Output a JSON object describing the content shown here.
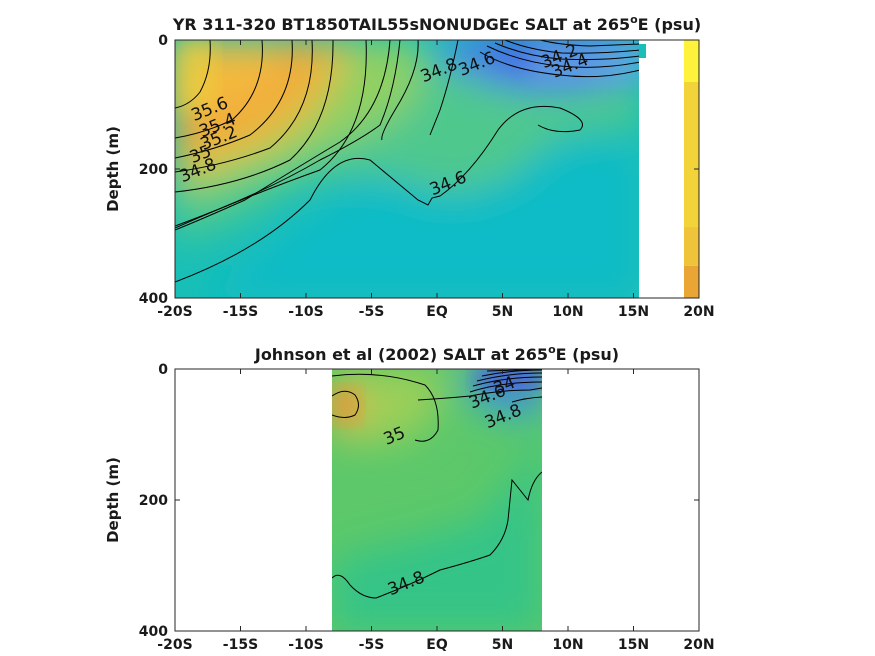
{
  "chart_data": [
    {
      "type": "contour",
      "title": "YR 311-320 BT1850TAIL55sNONUDGEc SALT at 265",
      "title_sup": "o",
      "title_suffix": "E (psu)",
      "xlabel": "",
      "ylabel": "Depth (m)",
      "xlim": [
        -20,
        20
      ],
      "ylim": [
        400,
        0
      ],
      "y_reversed": true,
      "x_ticks": [
        {
          "value": -20,
          "label": "-20S"
        },
        {
          "value": -15,
          "label": "-15S"
        },
        {
          "value": -10,
          "label": "-10S"
        },
        {
          "value": -5,
          "label": "-5S"
        },
        {
          "value": 0,
          "label": "EQ"
        },
        {
          "value": 5,
          "label": "5N"
        },
        {
          "value": 10,
          "label": "10N"
        },
        {
          "value": 15,
          "label": "15N"
        },
        {
          "value": 20,
          "label": "20N"
        }
      ],
      "y_ticks": [
        {
          "value": 0,
          "label": "0"
        },
        {
          "value": 200,
          "label": "200"
        },
        {
          "value": 400,
          "label": "400"
        }
      ],
      "data_extent": {
        "lat": [
          -20,
          15.5
        ],
        "depth": [
          0,
          395
        ]
      },
      "colorscale": {
        "low": "#3b40f2",
        "mid": "#16bfb8",
        "high": "#f5d236"
      },
      "contour_labels": [
        {
          "text": "35.6",
          "lat": -17.2,
          "depth": 115
        },
        {
          "text": "35.4",
          "lat": -16.6,
          "depth": 140
        },
        {
          "text": "35.2",
          "lat": -16.5,
          "depth": 160
        },
        {
          "text": "35",
          "lat": -17.9,
          "depth": 185
        },
        {
          "text": "34.8",
          "lat": -18.1,
          "depth": 210
        },
        {
          "text": "34.8",
          "lat": 0.3,
          "depth": 55
        },
        {
          "text": "34.6",
          "lat": 3.2,
          "depth": 45
        },
        {
          "text": "34.2",
          "lat": 9.5,
          "depth": 33
        },
        {
          "text": "34.4",
          "lat": 10.3,
          "depth": 48
        },
        {
          "text": "34.6",
          "lat": 1.0,
          "depth": 230
        }
      ]
    },
    {
      "type": "contour",
      "title": "Johnson et al (2002) SALT at 265",
      "title_sup": "o",
      "title_suffix": "E (psu)",
      "xlabel": "",
      "ylabel": "Depth (m)",
      "xlim": [
        -20,
        20
      ],
      "ylim": [
        400,
        0
      ],
      "y_reversed": true,
      "x_ticks": [
        {
          "value": -20,
          "label": "-20S"
        },
        {
          "value": -15,
          "label": "-15S"
        },
        {
          "value": -10,
          "label": "-10S"
        },
        {
          "value": -5,
          "label": "-5S"
        },
        {
          "value": 0,
          "label": "EQ"
        },
        {
          "value": 5,
          "label": "5N"
        },
        {
          "value": 10,
          "label": "10N"
        },
        {
          "value": 15,
          "label": "15N"
        },
        {
          "value": 20,
          "label": "20N"
        }
      ],
      "y_ticks": [
        {
          "value": 0,
          "label": "0"
        },
        {
          "value": 200,
          "label": "200"
        },
        {
          "value": 400,
          "label": "400"
        }
      ],
      "data_extent": {
        "lat": [
          -8,
          8
        ],
        "depth": [
          0,
          400
        ]
      },
      "colorscale": {
        "low": "#3b40f2",
        "mid": "#2cc48a",
        "high": "#e8a53a"
      },
      "contour_labels": [
        {
          "text": "35",
          "lat": -3.1,
          "depth": 110
        },
        {
          "text": "34.6",
          "lat": 4.0,
          "depth": 50
        },
        {
          "text": "34",
          "lat": 5.3,
          "depth": 33
        },
        {
          "text": "34.8",
          "lat": 5.2,
          "depth": 80
        },
        {
          "text": "34.8",
          "lat": -2.2,
          "depth": 335
        }
      ]
    }
  ],
  "colorbar_fragment": [
    {
      "depth_from": 0,
      "depth_to": 65,
      "color": "#fff23b"
    },
    {
      "depth_from": 65,
      "depth_to": 290,
      "color": "#f2d43a"
    },
    {
      "depth_from": 290,
      "depth_to": 350,
      "color": "#f0c43a"
    },
    {
      "depth_from": 350,
      "depth_to": 400,
      "color": "#e9a634"
    }
  ]
}
